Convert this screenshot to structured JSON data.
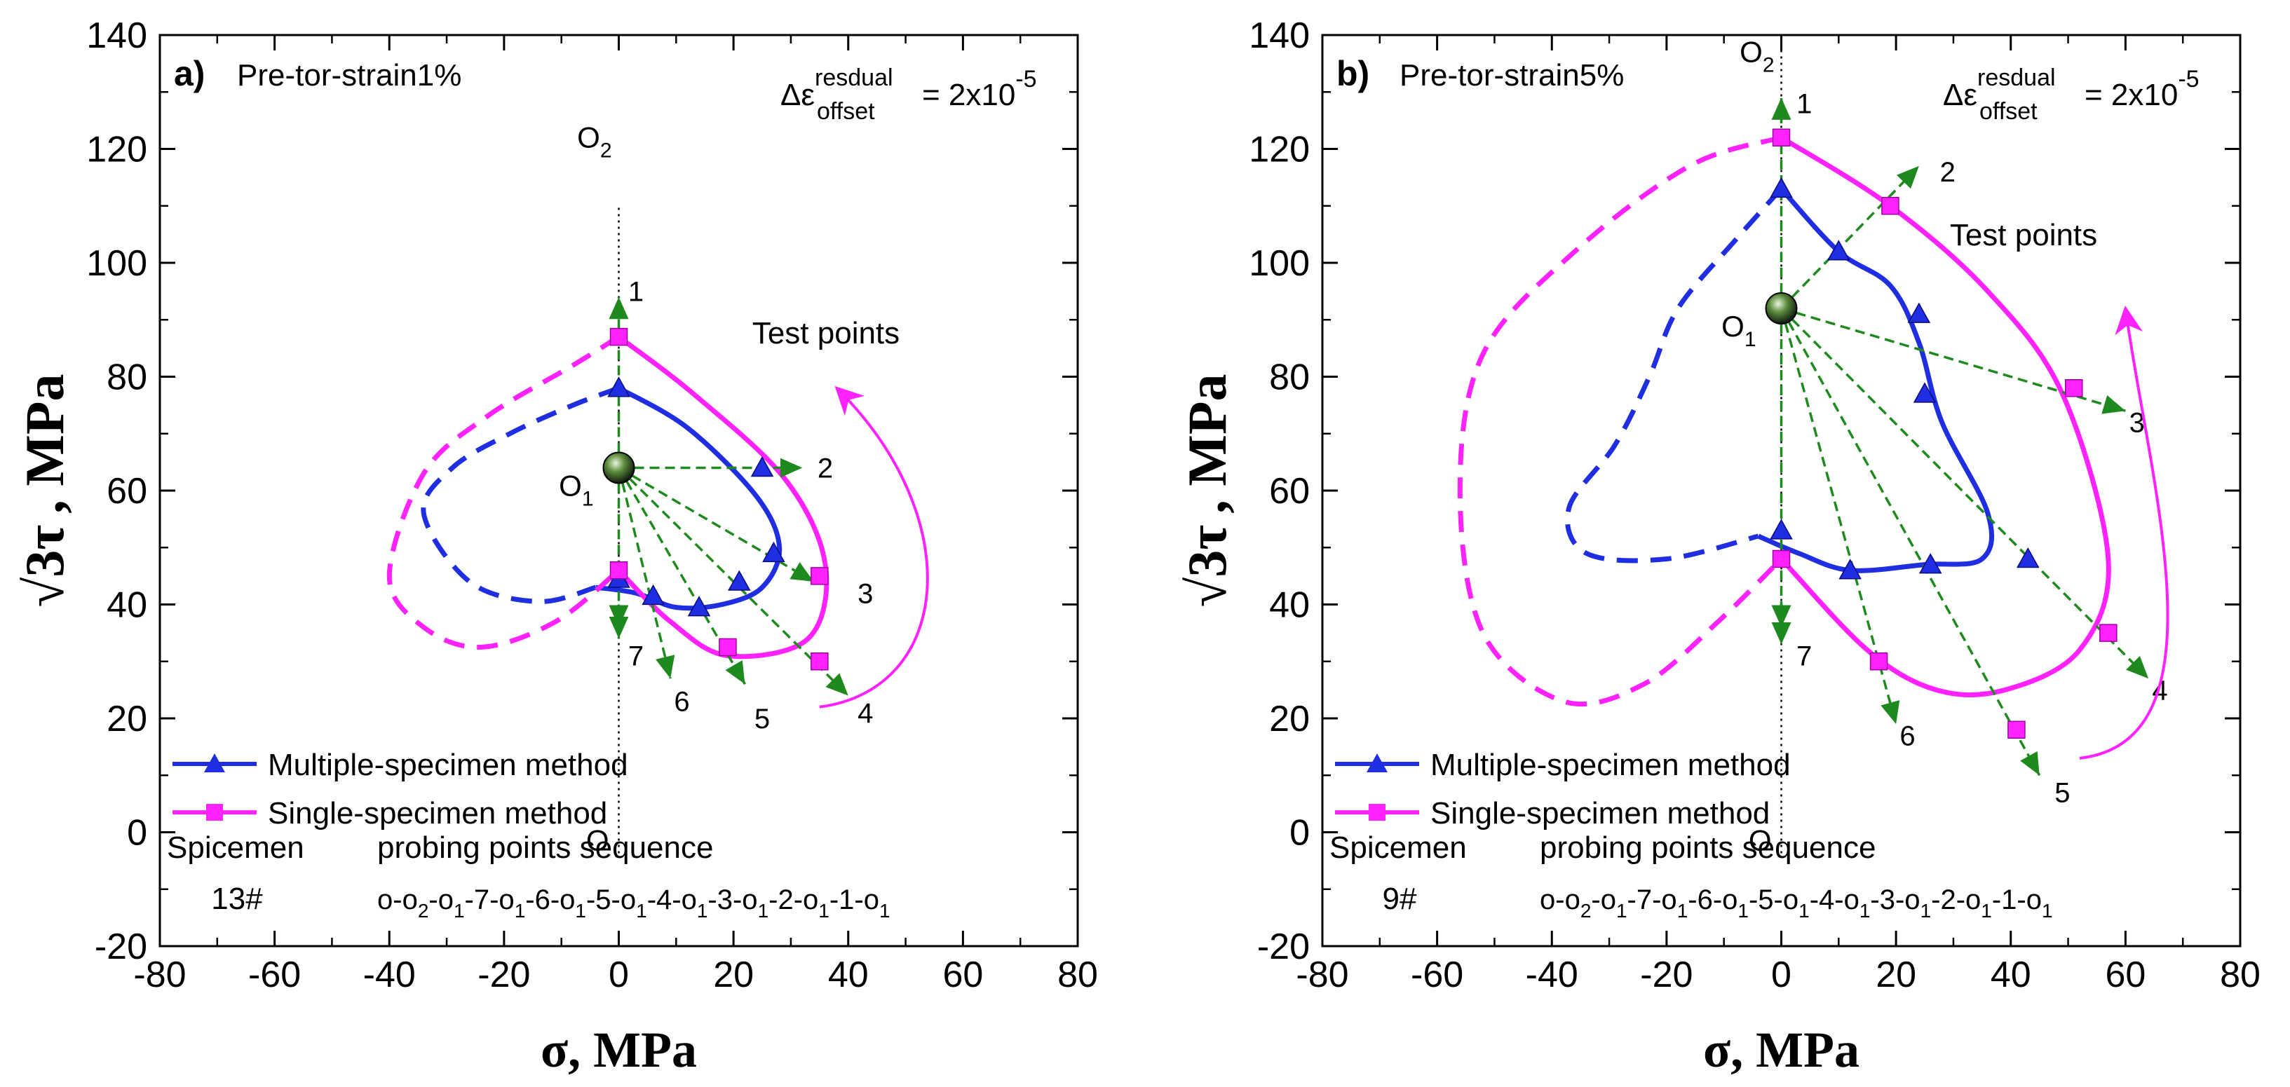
{
  "chart_data": [
    {
      "id": "a",
      "type": "line",
      "panel_label": "a)",
      "title": "Pre-tor-strain1%",
      "residual_prefix": "Δε",
      "residual_sup": "resdual",
      "residual_sub": "offset",
      "residual_eq": "= 2x10",
      "residual_exp": "-5",
      "xlabel": "σ,  MPa",
      "ylabel_main": "√3τ",
      "ylabel_unit": ", MPa",
      "xlim": [
        -80,
        80
      ],
      "ylim": [
        -20,
        140
      ],
      "xticks": [
        "-80",
        "-60",
        "-40",
        "-20",
        "0",
        "20",
        "40",
        "60",
        "80"
      ],
      "yticks": [
        "-20",
        "0",
        "20",
        "40",
        "60",
        "80",
        "100",
        "120",
        "140"
      ],
      "origin_label": "O",
      "O1_label": "O",
      "O1_sub": "1",
      "O2_label": "O",
      "O2_sub": "2",
      "O1": [
        0,
        64
      ],
      "O2": [
        0,
        122
      ],
      "origin": [
        0,
        0
      ],
      "O2_line_top": 110,
      "probes": [
        {
          "label": "1",
          "end": [
            0,
            94
          ]
        },
        {
          "label": "2",
          "end": [
            32,
            64
          ]
        },
        {
          "label": "3",
          "end": [
            34,
            44
          ]
        },
        {
          "label": "4",
          "end": [
            40,
            24
          ]
        },
        {
          "label": "5",
          "end": [
            22,
            26
          ]
        },
        {
          "label": "6",
          "end": [
            9,
            27
          ]
        },
        {
          "label": "7",
          "end": [
            0,
            34
          ]
        }
      ],
      "probe_labels": [
        {
          "label": "1",
          "pos": [
            3,
            95
          ]
        },
        {
          "label": "2",
          "pos": [
            36,
            64
          ]
        },
        {
          "label": "3",
          "pos": [
            43,
            42
          ]
        },
        {
          "label": "4",
          "pos": [
            43,
            21
          ]
        },
        {
          "label": "5",
          "pos": [
            25,
            20
          ]
        },
        {
          "label": "6",
          "pos": [
            11,
            23
          ]
        },
        {
          "label": "7",
          "pos": [
            3,
            31
          ]
        }
      ],
      "series": [
        {
          "name": "Multiple-specimen method",
          "marker": "triangle",
          "color": "#1f2ee0",
          "points": [
            [
              0,
              78
            ],
            [
              25,
              64
            ],
            [
              27,
              49
            ],
            [
              21,
              44
            ],
            [
              14,
              39.5
            ],
            [
              6,
              41.5
            ],
            [
              0,
              44.5
            ]
          ],
          "solid_curve": [
            [
              0,
              78
            ],
            [
              12,
              71
            ],
            [
              24,
              59
            ],
            [
              28,
              50
            ],
            [
              25,
              43
            ],
            [
              18,
              40
            ],
            [
              10,
              39.5
            ],
            [
              3,
              42
            ],
            [
              -4,
              43
            ]
          ],
          "dashed_curve": [
            [
              0,
              78
            ],
            [
              -8,
              75
            ],
            [
              -19,
              70
            ],
            [
              -29,
              64
            ],
            [
              -34,
              56
            ],
            [
              -26,
              44
            ],
            [
              -14,
              40.5
            ],
            [
              -4,
              43
            ]
          ]
        },
        {
          "name": "Single-specimen method",
          "marker": "square",
          "color": "#ff22ff",
          "points": [
            [
              0,
              87
            ],
            [
              35,
              45
            ],
            [
              35,
              30
            ],
            [
              19,
              32.5
            ],
            [
              0,
              46
            ]
          ],
          "solid_curve": [
            [
              0,
              87
            ],
            [
              13,
              77
            ],
            [
              29,
              62
            ],
            [
              36,
              47
            ],
            [
              33,
              34
            ],
            [
              19,
              31
            ],
            [
              9,
              37
            ],
            [
              0,
              46
            ]
          ],
          "dashed_curve": [
            [
              0,
              87
            ],
            [
              -8,
              82
            ],
            [
              -23,
              73
            ],
            [
              -34,
              63
            ],
            [
              -40,
              45
            ],
            [
              -34,
              36
            ],
            [
              -24,
              32.5
            ],
            [
              -11,
              37
            ],
            [
              0,
              46
            ]
          ]
        }
      ],
      "test_points_label": "Test points",
      "test_arrow": [
        [
          35,
          22
        ],
        [
          58,
          25
        ],
        [
          61,
          55
        ],
        [
          38,
          78
        ]
      ],
      "legend": {
        "entries": [
          "Multiple-specimen method",
          "Single-specimen method"
        ]
      },
      "spec_header": "Spicemen",
      "spec_id": "13#",
      "seq_header": "probing points sequence",
      "seq_parts": [
        [
          "o-o",
          "2"
        ],
        [
          "-o",
          "1"
        ],
        [
          "-7-o",
          "1"
        ],
        [
          "-6-o",
          "1"
        ],
        [
          "-5-o",
          "1"
        ],
        [
          "-4-o",
          "1"
        ],
        [
          "-3-o",
          "1"
        ],
        [
          "-2-o",
          "1"
        ],
        [
          "-1-o",
          "1"
        ]
      ]
    },
    {
      "id": "b",
      "type": "line",
      "panel_label": "b)",
      "title": "Pre-tor-strain5%",
      "residual_prefix": "Δε",
      "residual_sup": "resdual",
      "residual_sub": "offset",
      "residual_eq": "= 2x10",
      "residual_exp": "-5",
      "xlabel": "σ,  MPa",
      "ylabel_main": "√3τ",
      "ylabel_unit": ", MPa",
      "xlim": [
        -80,
        80
      ],
      "ylim": [
        -20,
        140
      ],
      "xticks": [
        "-80",
        "-60",
        "-40",
        "-20",
        "0",
        "20",
        "40",
        "60",
        "80"
      ],
      "yticks": [
        "-20",
        "0",
        "20",
        "40",
        "60",
        "80",
        "100",
        "120",
        "140"
      ],
      "origin_label": "O",
      "O1_label": "O",
      "O1_sub": "1",
      "O2_label": "O",
      "O2_sub": "2",
      "O1": [
        0,
        92
      ],
      "O2": [
        0,
        137
      ],
      "origin": [
        0,
        0
      ],
      "O2_line_top": 140,
      "probes": [
        {
          "label": "1",
          "end": [
            0,
            129
          ]
        },
        {
          "label": "2",
          "end": [
            24,
            117
          ]
        },
        {
          "label": "3",
          "end": [
            60,
            74
          ]
        },
        {
          "label": "4",
          "end": [
            64,
            27
          ]
        },
        {
          "label": "5",
          "end": [
            45,
            10
          ]
        },
        {
          "label": "6",
          "end": [
            20,
            19
          ]
        },
        {
          "label": "7",
          "end": [
            0,
            33
          ]
        }
      ],
      "probe_labels": [
        {
          "label": "1",
          "pos": [
            4,
            128
          ]
        },
        {
          "label": "2",
          "pos": [
            29,
            116
          ]
        },
        {
          "label": "3",
          "pos": [
            62,
            72
          ]
        },
        {
          "label": "4",
          "pos": [
            66,
            25
          ]
        },
        {
          "label": "5",
          "pos": [
            49,
            7
          ]
        },
        {
          "label": "6",
          "pos": [
            22,
            17
          ]
        },
        {
          "label": "7",
          "pos": [
            4,
            31
          ]
        }
      ],
      "series": [
        {
          "name": "Multiple-specimen method",
          "marker": "triangle",
          "color": "#1f2ee0",
          "points": [
            [
              0,
              113
            ],
            [
              10,
              102
            ],
            [
              24,
              91
            ],
            [
              25,
              77
            ],
            [
              43,
              48
            ],
            [
              26,
              47
            ],
            [
              12,
              46
            ],
            [
              0,
              53
            ]
          ],
          "solid_curve": [
            [
              0,
              113
            ],
            [
              10,
              102
            ],
            [
              19,
              96
            ],
            [
              24,
              86
            ],
            [
              28,
              72
            ],
            [
              36,
              56
            ],
            [
              35,
              48
            ],
            [
              25,
              47
            ],
            [
              12,
              46
            ],
            [
              3,
              49
            ],
            [
              -4,
              52
            ]
          ],
          "dashed_curve": [
            [
              0,
              113
            ],
            [
              -8,
              104
            ],
            [
              -18,
              92
            ],
            [
              -23,
              80
            ],
            [
              -29,
              68
            ],
            [
              -37,
              57
            ],
            [
              -34,
              49
            ],
            [
              -20,
              48
            ],
            [
              -4,
              52
            ]
          ]
        },
        {
          "name": "Single-specimen method",
          "marker": "square",
          "color": "#ff22ff",
          "points": [
            [
              0,
              122
            ],
            [
              19,
              110
            ],
            [
              51,
              78
            ],
            [
              57,
              35
            ],
            [
              41,
              18
            ],
            [
              17,
              30
            ],
            [
              0,
              48
            ]
          ],
          "solid_curve": [
            [
              0,
              122
            ],
            [
              19,
              110
            ],
            [
              36,
              95
            ],
            [
              49,
              77
            ],
            [
              57,
              48
            ],
            [
              52,
              32
            ],
            [
              39,
              25
            ],
            [
              27,
              25
            ],
            [
              15,
              32
            ],
            [
              0,
              48
            ]
          ],
          "dashed_curve": [
            [
              0,
              122
            ],
            [
              -16,
              117
            ],
            [
              -36,
              102
            ],
            [
              -52,
              84
            ],
            [
              -56,
              60
            ],
            [
              -52,
              35
            ],
            [
              -38,
              23
            ],
            [
              -24,
              26
            ],
            [
              -11,
              37
            ],
            [
              0,
              48
            ]
          ]
        }
      ],
      "test_points_label": "Test points",
      "test_arrow": [
        [
          52,
          13
        ],
        [
          78,
          16
        ],
        [
          64,
          62
        ],
        [
          60,
          92
        ]
      ],
      "legend": {
        "entries": [
          "Multiple-specimen method",
          "Single-specimen method"
        ]
      },
      "spec_header": "Spicemen",
      "spec_id": "9#",
      "seq_header": "probing points sequence",
      "seq_parts": [
        [
          "o-o",
          "2"
        ],
        [
          "-o",
          "1"
        ],
        [
          "-7-o",
          "1"
        ],
        [
          "-6-o",
          "1"
        ],
        [
          "-5-o",
          "1"
        ],
        [
          "-4-o",
          "1"
        ],
        [
          "-3-o",
          "1"
        ],
        [
          "-2-o",
          "1"
        ],
        [
          "-1-o",
          "1"
        ]
      ]
    }
  ]
}
